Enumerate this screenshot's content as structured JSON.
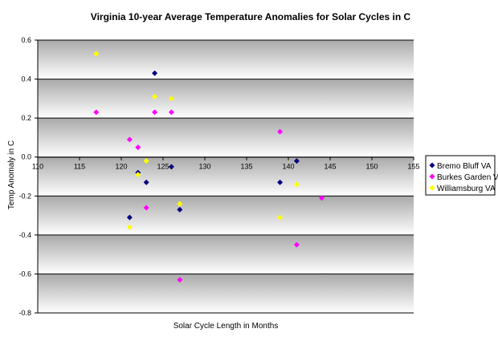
{
  "chart_data": {
    "type": "scatter",
    "title": "Virginia 10-year Average Temperature Anomalies for Solar Cycles in C",
    "xlabel": "Solar Cycle Length in Months",
    "ylabel": "Temp Anomaly in C",
    "xlim": [
      110,
      155
    ],
    "ylim": [
      -0.8,
      0.6
    ],
    "x_ticks": [
      110,
      115,
      120,
      125,
      130,
      135,
      140,
      145,
      150,
      155
    ],
    "x_tick_labels": [
      "110",
      "115",
      "120",
      "125",
      "130",
      "135",
      "140",
      "145",
      "150",
      "155"
    ],
    "y_ticks": [
      0.6,
      0.4,
      0.2,
      0.0,
      -0.2,
      -0.4,
      -0.6,
      -0.8
    ],
    "y_tick_labels": [
      "0.6",
      "0.4",
      "0.2",
      "0.0",
      "-0.2",
      "-0.4",
      "-0.6",
      "-0.8"
    ],
    "grid": "horizontal",
    "legend_position": "right",
    "series": [
      {
        "name": "Bremo Bluff VA",
        "color": "#000080",
        "marker": "diamond",
        "points": [
          [
            121,
            -0.31
          ],
          [
            122,
            -0.08
          ],
          [
            123,
            -0.13
          ],
          [
            124,
            0.43
          ],
          [
            126,
            -0.05
          ],
          [
            127,
            -0.27
          ],
          [
            139,
            -0.13
          ],
          [
            141,
            -0.02
          ]
        ]
      },
      {
        "name": "Burkes Garden VA",
        "color": "#ff00ff",
        "marker": "diamond",
        "points": [
          [
            117,
            0.23
          ],
          [
            121,
            0.09
          ],
          [
            122,
            0.05
          ],
          [
            123,
            -0.26
          ],
          [
            124,
            0.23
          ],
          [
            126,
            0.23
          ],
          [
            127,
            -0.63
          ],
          [
            139,
            0.13
          ],
          [
            141,
            -0.45
          ],
          [
            144,
            -0.21
          ]
        ]
      },
      {
        "name": "Williamsburg VA",
        "color": "#ffff00",
        "marker": "diamond",
        "points": [
          [
            117,
            0.53
          ],
          [
            121,
            -0.36
          ],
          [
            122,
            -0.09
          ],
          [
            123,
            -0.02
          ],
          [
            124,
            0.31
          ],
          [
            126,
            0.3
          ],
          [
            127,
            -0.24
          ],
          [
            139,
            -0.31
          ],
          [
            141,
            -0.14
          ]
        ]
      }
    ]
  }
}
